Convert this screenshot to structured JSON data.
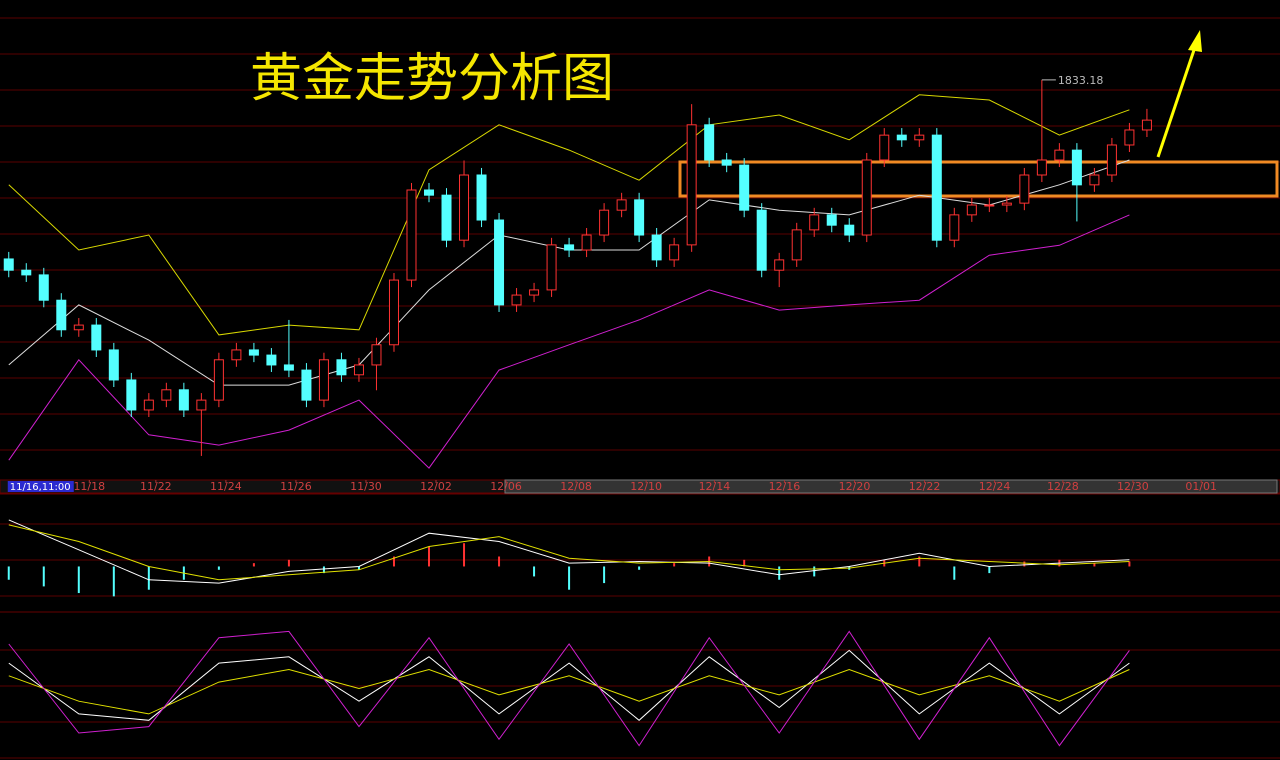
{
  "chart_data": {
    "type": "candlestick",
    "title": "黄金走势分析图",
    "xlim": [
      -0.5,
      72.6
    ],
    "xticks": [
      {
        "value": 0,
        "label": "11/16,11:00"
      },
      {
        "value": 4.6,
        "label": "11/18"
      },
      {
        "value": 8.4,
        "label": "11/22"
      },
      {
        "value": 12.4,
        "label": "11/24"
      },
      {
        "value": 16.4,
        "label": "11/26"
      },
      {
        "value": 20.4,
        "label": "11/30"
      },
      {
        "value": 24.4,
        "label": "12/02"
      },
      {
        "value": 28.4,
        "label": "12/06"
      },
      {
        "value": 32.4,
        "label": "12/08"
      },
      {
        "value": 36.4,
        "label": "12/10"
      },
      {
        "value": 40.3,
        "label": "12/14"
      },
      {
        "value": 44.3,
        "label": "12/16"
      },
      {
        "value": 48.3,
        "label": "12/20"
      },
      {
        "value": 52.3,
        "label": "12/22"
      },
      {
        "value": 56.3,
        "label": "12/24"
      },
      {
        "value": 60.2,
        "label": "12/28"
      },
      {
        "value": 64.2,
        "label": "12/30"
      },
      {
        "value": 68.1,
        "label": "01/01"
      }
    ],
    "ylim": [
      1750,
      1850
    ],
    "up_color": "#ff3232",
    "down_color": "#54ffff",
    "series": {
      "open": [
        1795.0,
        1792.6,
        1791.6,
        1786.2,
        1779.9,
        1780.9,
        1775.6,
        1769.2,
        1762.8,
        1764.9,
        1767.1,
        1762.8,
        1764.9,
        1773.5,
        1775.6,
        1774.5,
        1772.4,
        1771.3,
        1764.9,
        1773.5,
        1770.3,
        1772.4,
        1776.7,
        1790.5,
        1809.7,
        1808.6,
        1799.0,
        1812.9,
        1803.3,
        1785.2,
        1787.3,
        1788.4,
        1798.0,
        1796.9,
        1800.1,
        1805.4,
        1807.6,
        1800.1,
        1794.8,
        1798.0,
        1823.6,
        1816.1,
        1815.0,
        1805.4,
        1792.6,
        1794.8,
        1801.2,
        1804.4,
        1802.2,
        1800.1,
        1816.1,
        1821.4,
        1820.4,
        1821.4,
        1799.0,
        1804.4,
        1806.5,
        1806.5,
        1806.9,
        1812.9,
        1816.1,
        1818.2,
        1810.8,
        1812.9,
        1819.3,
        1822.5
      ],
      "high": [
        1796.5,
        1794.1,
        1793.1,
        1787.7,
        1782.4,
        1782.4,
        1777.1,
        1770.7,
        1766.4,
        1768.6,
        1768.6,
        1766.4,
        1775.0,
        1777.1,
        1777.1,
        1776.0,
        1782.0,
        1772.8,
        1775.0,
        1775.0,
        1773.9,
        1778.2,
        1792.0,
        1811.2,
        1811.2,
        1810.1,
        1816.0,
        1814.4,
        1804.8,
        1788.8,
        1789.9,
        1799.5,
        1799.5,
        1801.6,
        1806.9,
        1809.1,
        1809.1,
        1801.6,
        1799.5,
        1828.0,
        1825.1,
        1817.6,
        1816.5,
        1806.9,
        1796.3,
        1802.7,
        1805.9,
        1805.9,
        1803.7,
        1817.6,
        1822.9,
        1822.9,
        1822.9,
        1822.9,
        1805.9,
        1808.0,
        1808.0,
        1808.4,
        1814.4,
        1833.18,
        1819.7,
        1819.7,
        1814.4,
        1820.8,
        1824.0,
        1827.0
      ],
      "low": [
        1791.1,
        1790.1,
        1784.7,
        1778.4,
        1778.4,
        1774.1,
        1767.7,
        1761.3,
        1761.3,
        1763.4,
        1761.3,
        1753.0,
        1763.4,
        1772.0,
        1773.0,
        1770.9,
        1769.8,
        1763.4,
        1763.4,
        1768.8,
        1768.8,
        1767.0,
        1775.2,
        1789.0,
        1807.1,
        1797.5,
        1797.5,
        1801.8,
        1783.7,
        1783.7,
        1785.8,
        1786.9,
        1795.4,
        1795.4,
        1798.6,
        1803.9,
        1798.6,
        1793.3,
        1793.3,
        1796.5,
        1814.6,
        1813.5,
        1803.9,
        1791.1,
        1789.0,
        1793.3,
        1799.7,
        1800.7,
        1798.6,
        1798.6,
        1814.6,
        1818.9,
        1818.9,
        1797.5,
        1797.5,
        1802.9,
        1805.0,
        1805.0,
        1805.4,
        1811.4,
        1814.6,
        1803.0,
        1809.3,
        1811.4,
        1817.8,
        1821.0
      ],
      "close": [
        1792.6,
        1791.6,
        1786.2,
        1779.9,
        1780.9,
        1775.6,
        1769.2,
        1762.8,
        1764.9,
        1767.1,
        1762.8,
        1764.9,
        1773.5,
        1775.6,
        1774.5,
        1772.4,
        1771.3,
        1764.9,
        1773.5,
        1770.3,
        1772.4,
        1776.7,
        1790.5,
        1809.7,
        1808.6,
        1799.0,
        1812.9,
        1803.3,
        1785.2,
        1787.3,
        1788.4,
        1798.0,
        1796.9,
        1800.1,
        1805.4,
        1807.6,
        1800.1,
        1794.8,
        1798.0,
        1823.6,
        1816.1,
        1815.0,
        1805.4,
        1792.6,
        1794.8,
        1801.2,
        1804.4,
        1802.2,
        1800.1,
        1816.1,
        1821.4,
        1820.4,
        1821.4,
        1799.0,
        1804.4,
        1806.5,
        1806.5,
        1806.9,
        1812.9,
        1816.1,
        1818.2,
        1810.8,
        1812.9,
        1819.3,
        1822.5,
        1824.6
      ]
    },
    "bands_x": [
      0,
      4,
      8,
      12,
      16,
      20,
      24,
      28,
      32,
      36,
      40,
      44,
      48,
      52,
      56,
      60,
      64
    ],
    "bands": [
      {
        "color": "#d8d800",
        "values": [
          1810.8,
          1796.9,
          1800.1,
          1778.8,
          1780.9,
          1779.9,
          1814.0,
          1823.6,
          1818.2,
          1811.8,
          1823.6,
          1825.7,
          1820.4,
          1830.0,
          1828.9,
          1821.4,
          1826.8
        ]
      },
      {
        "color": "#dddddd",
        "values": [
          1772.4,
          1785.2,
          1777.7,
          1768.1,
          1768.1,
          1772.4,
          1788.4,
          1800.1,
          1796.9,
          1796.9,
          1807.6,
          1805.4,
          1804.4,
          1808.6,
          1806.5,
          1810.8,
          1816.1
        ]
      },
      {
        "color": "#d020d0",
        "values": [
          1752.1,
          1773.5,
          1757.5,
          1755.3,
          1758.5,
          1764.9,
          1750.4,
          1771.3,
          1776.7,
          1782.0,
          1788.4,
          1784.1,
          1785.2,
          1786.2,
          1795.8,
          1797.9,
          1804.4
        ]
      }
    ],
    "macd": {
      "ylim": [
        -25,
        40
      ],
      "x": [
        0,
        4,
        8,
        12,
        16,
        20,
        24,
        28,
        32,
        36,
        40,
        44,
        48,
        52,
        56,
        60,
        64
      ],
      "lines": [
        {
          "color": "#ffffff",
          "values": [
            28,
            10,
            -8,
            -10,
            -3,
            0,
            20,
            15,
            2,
            3,
            2,
            -5,
            0,
            8,
            0,
            2,
            4
          ]
        },
        {
          "color": "#e0e000",
          "values": [
            25,
            15,
            0,
            -8,
            -5,
            -2,
            12,
            18,
            5,
            2,
            3,
            -2,
            -1,
            5,
            3,
            1,
            3
          ]
        }
      ],
      "hist_x": [
        0,
        2,
        4,
        6,
        8,
        10,
        12,
        14,
        16,
        18,
        20,
        22,
        24,
        26,
        28,
        30,
        32,
        34,
        36,
        38,
        40,
        42,
        44,
        46,
        48,
        50,
        52,
        54,
        56,
        58,
        60,
        62,
        64
      ],
      "hist": [
        -8,
        -12,
        -16,
        -18,
        -14,
        -8,
        -2,
        2,
        4,
        -4,
        -2,
        6,
        12,
        14,
        6,
        -6,
        -14,
        -10,
        -2,
        2,
        6,
        4,
        -8,
        -6,
        -2,
        4,
        6,
        -8,
        -4,
        3,
        4,
        2,
        3
      ]
    },
    "kdj": {
      "ylim": [
        0,
        100
      ],
      "x": [
        0,
        4,
        8,
        12,
        16,
        20,
        24,
        28,
        32,
        36,
        40,
        44,
        48,
        52,
        56,
        60,
        64
      ],
      "lines": [
        {
          "color": "#ffffff",
          "values": [
            70,
            30,
            25,
            70,
            75,
            40,
            75,
            30,
            70,
            25,
            75,
            35,
            80,
            30,
            70,
            30,
            70
          ]
        },
        {
          "color": "#e0e000",
          "values": [
            60,
            40,
            30,
            55,
            65,
            50,
            65,
            45,
            60,
            40,
            60,
            45,
            65,
            45,
            60,
            40,
            65
          ]
        },
        {
          "color": "#d020d0",
          "values": [
            85,
            15,
            20,
            90,
            95,
            20,
            90,
            10,
            85,
            5,
            90,
            15,
            95,
            10,
            90,
            5,
            80
          ]
        }
      ]
    }
  }
}
